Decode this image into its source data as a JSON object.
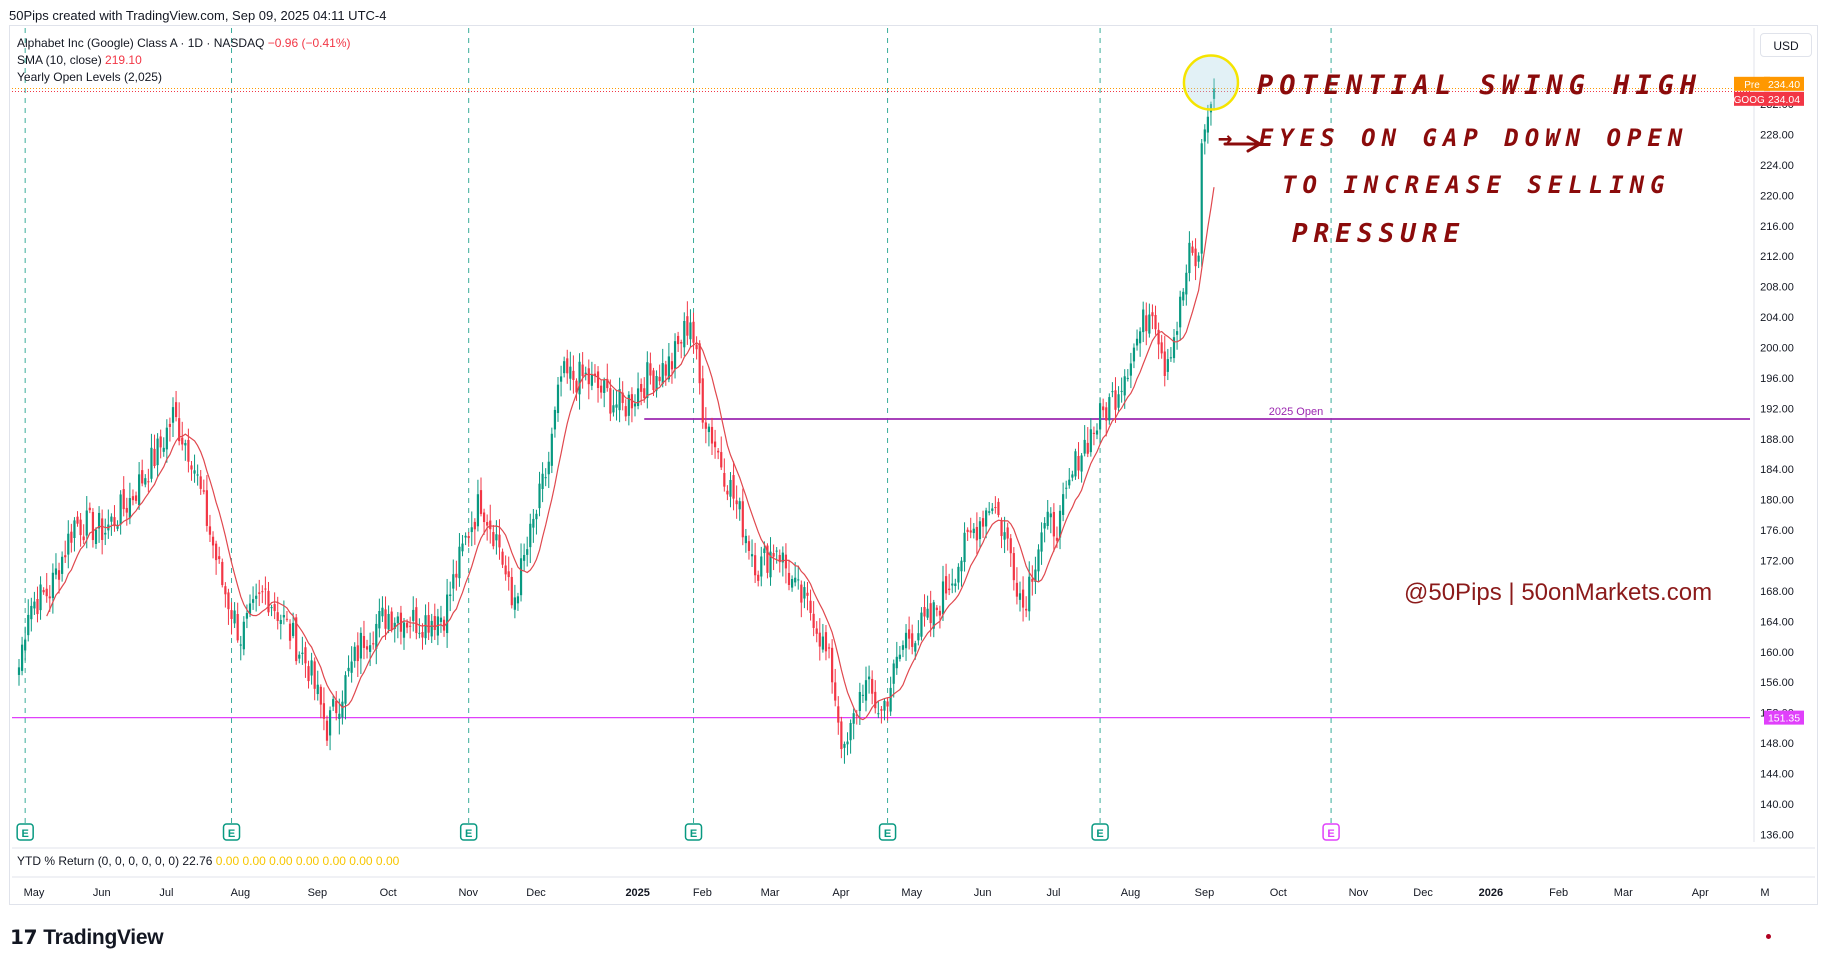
{
  "credit": "50Pips created with TradingView.com, Sep 09, 2025 04:11 UTC-4",
  "legend": {
    "symbol_line": "Alphabet Inc (Google) Class A · 1D · NASDAQ",
    "change": "−0.96 (−0.41%)",
    "sma_label": "SMA (10, close)",
    "sma_value": "219.10",
    "yearly_label": "Yearly Open Levels (2,025)"
  },
  "currency_button": "USD",
  "annotations": {
    "note_line1": "POTENTIAL SWING HIGH",
    "note_line2": "→ EYES ON GAP DOWN OPEN",
    "note_line3": "TO INCREASE SELLING",
    "note_line4": "PRESSURE",
    "watermark": "@50Pips | 50onMarkets.com"
  },
  "ytd": {
    "label": "YTD % Return (0, 0, 0, 0, 0, 0)",
    "value": "22.76",
    "zeros": "0.00  0.00  0.00  0.00  0.00  0.00  0.00"
  },
  "brand": "TradingView",
  "colors": {
    "up": "#089981",
    "down": "#f23645",
    "sma": "#e0484e",
    "open_level": "#9c27b0",
    "support": "#e040fb",
    "earnings": "#089981"
  },
  "chart_data": {
    "type": "candlestick",
    "symbol": "GOOGL",
    "ylim": [
      135,
      242
    ],
    "y_ticks": [
      136,
      140,
      144,
      148,
      152,
      156,
      160,
      164,
      168,
      172,
      176,
      180,
      184,
      188,
      192,
      196,
      200,
      204,
      208,
      212,
      216,
      220,
      224,
      228,
      232
    ],
    "x_ticks": [
      {
        "label": "May",
        "idx": 0
      },
      {
        "label": "Jun",
        "idx": 22
      },
      {
        "label": "Jul",
        "idx": 43
      },
      {
        "label": "Aug",
        "idx": 67
      },
      {
        "label": "Sep",
        "idx": 92
      },
      {
        "label": "Oct",
        "idx": 115
      },
      {
        "label": "Nov",
        "idx": 141
      },
      {
        "label": "Dec",
        "idx": 163
      },
      {
        "label": "2025",
        "idx": 196
      },
      {
        "label": "Feb",
        "idx": 217
      },
      {
        "label": "Mar",
        "idx": 239
      },
      {
        "label": "Apr",
        "idx": 262
      },
      {
        "label": "May",
        "idx": 285
      },
      {
        "label": "Jun",
        "idx": 308
      },
      {
        "label": "Jul",
        "idx": 331
      },
      {
        "label": "Aug",
        "idx": 356
      },
      {
        "label": "Sep",
        "idx": 380
      },
      {
        "label": "Oct",
        "idx": 404
      },
      {
        "label": "Nov",
        "idx": 430
      },
      {
        "label": "Dec",
        "idx": 451
      },
      {
        "label": "2026",
        "idx": 473
      },
      {
        "label": "Feb",
        "idx": 495
      },
      {
        "label": "Mar",
        "idx": 516
      },
      {
        "label": "Apr",
        "idx": 541
      },
      {
        "label": "M",
        "idx": 562
      }
    ],
    "keypoints": [
      [
        0,
        158
      ],
      [
        3,
        166
      ],
      [
        10,
        168
      ],
      [
        18,
        177
      ],
      [
        28,
        176
      ],
      [
        36,
        180
      ],
      [
        46,
        187
      ],
      [
        50,
        191
      ],
      [
        56,
        186
      ],
      [
        60,
        179
      ],
      [
        66,
        169
      ],
      [
        72,
        162
      ],
      [
        80,
        168
      ],
      [
        86,
        164
      ],
      [
        94,
        158
      ],
      [
        100,
        150
      ],
      [
        106,
        156
      ],
      [
        112,
        162
      ],
      [
        120,
        165
      ],
      [
        130,
        164
      ],
      [
        138,
        165
      ],
      [
        146,
        176
      ],
      [
        150,
        180
      ],
      [
        156,
        174
      ],
      [
        160,
        166
      ],
      [
        166,
        175
      ],
      [
        172,
        185
      ],
      [
        176,
        196
      ],
      [
        184,
        196
      ],
      [
        190,
        194
      ],
      [
        196,
        192
      ],
      [
        204,
        196
      ],
      [
        212,
        198
      ],
      [
        218,
        204
      ],
      [
        222,
        192
      ],
      [
        228,
        185
      ],
      [
        234,
        178
      ],
      [
        240,
        171
      ],
      [
        246,
        174
      ],
      [
        252,
        168
      ],
      [
        258,
        165
      ],
      [
        264,
        157
      ],
      [
        268,
        146
      ],
      [
        274,
        156
      ],
      [
        280,
        152
      ],
      [
        288,
        162
      ],
      [
        296,
        164
      ],
      [
        304,
        171
      ],
      [
        310,
        176
      ],
      [
        316,
        180
      ],
      [
        322,
        173
      ],
      [
        326,
        166
      ],
      [
        332,
        176
      ],
      [
        338,
        177
      ],
      [
        344,
        186
      ],
      [
        350,
        190
      ],
      [
        356,
        194
      ],
      [
        362,
        200
      ],
      [
        368,
        206
      ],
      [
        372,
        198
      ],
      [
        376,
        203
      ],
      [
        380,
        212
      ],
      [
        383,
        211
      ],
      [
        384,
        227
      ],
      [
        387,
        232
      ],
      [
        388,
        234.04
      ]
    ],
    "earnings_idx": [
      2,
      69,
      146,
      219,
      282,
      351,
      426
    ],
    "current_price_line": 234.04,
    "yearly_open": {
      "label": "2025 Open",
      "value": 190.6,
      "start_idx": 203
    },
    "support_level": 151.35,
    "price_labels": [
      {
        "label": "Pre",
        "value": "234.40",
        "color": "#ff9800"
      },
      {
        "label": "GOOGL",
        "value": "234.04",
        "color": "#f23645"
      },
      {
        "label": "",
        "value": "151.35",
        "color": "#e040fb"
      }
    ],
    "highlight_idx": 387
  }
}
